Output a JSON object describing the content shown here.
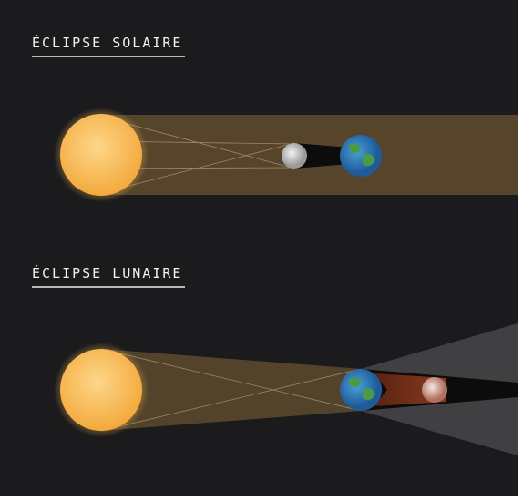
{
  "sections": [
    {
      "title": "ÉCLIPSE SOLAIRE"
    },
    {
      "title": "ÉCLIPSE LUNAIRE"
    }
  ]
}
